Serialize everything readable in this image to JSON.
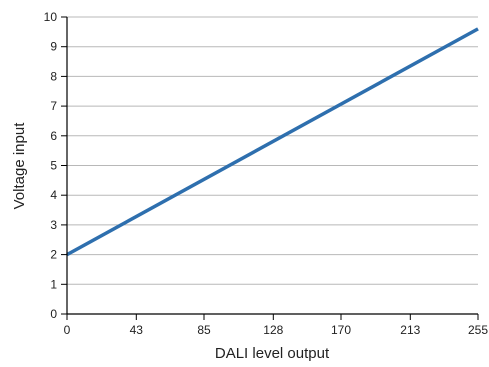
{
  "chart_data": {
    "type": "line",
    "xlabel": "DALI level output",
    "ylabel": "Voltage input",
    "xlim": [
      0,
      255
    ],
    "ylim": [
      0,
      10
    ],
    "x_ticks": [
      0,
      43,
      85,
      128,
      170,
      213,
      255
    ],
    "y_ticks": [
      0,
      1,
      2,
      3,
      4,
      5,
      6,
      7,
      8,
      9,
      10
    ],
    "grid": "horizontal",
    "series": [
      {
        "color": "#2e6fae",
        "x": [
          0,
          255
        ],
        "y": [
          2,
          9.6
        ]
      }
    ]
  }
}
